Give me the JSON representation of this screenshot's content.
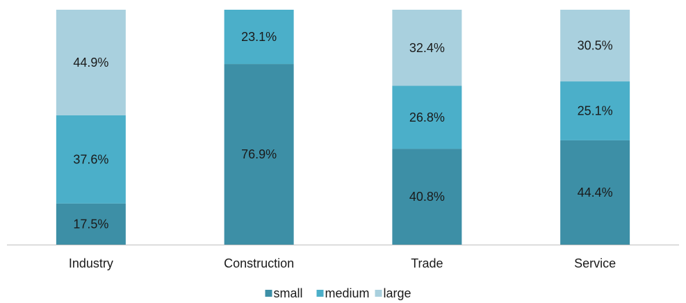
{
  "chart_data": {
    "type": "bar",
    "stacked": true,
    "categories": [
      "Industry",
      "Construction",
      "Trade",
      "Service"
    ],
    "series": [
      {
        "name": "small",
        "values": [
          17.5,
          76.9,
          40.8,
          44.4
        ],
        "color": "#3d8fa6"
      },
      {
        "name": "medium",
        "values": [
          37.6,
          23.1,
          26.8,
          25.1
        ],
        "color": "#4bafc9"
      },
      {
        "name": "large",
        "values": [
          44.9,
          0,
          32.4,
          30.5
        ],
        "color": "#a9d0de"
      }
    ],
    "value_suffix": "%",
    "ylim": [
      0,
      100
    ],
    "grid": false,
    "legend_position": "bottom"
  }
}
